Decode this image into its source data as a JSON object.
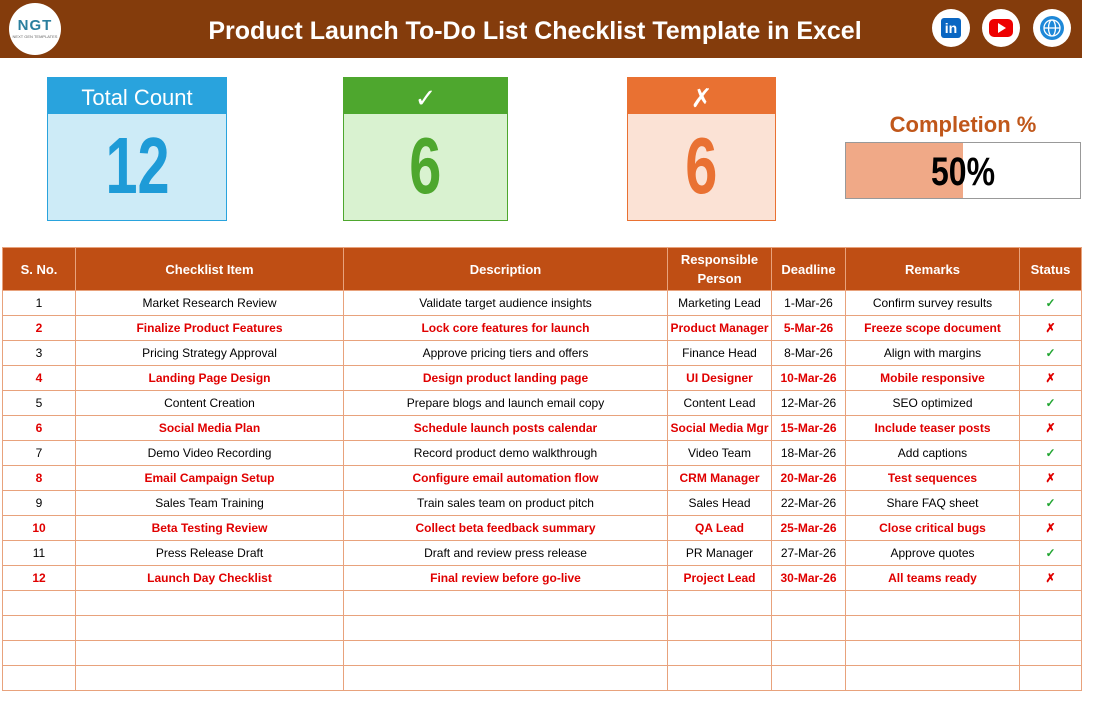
{
  "header": {
    "logo": "NGT",
    "logo_tagline": "NEXT GEN TEMPLATES",
    "title": "Product Launch To-Do List Checklist Template in Excel",
    "linkedin_icon": "in"
  },
  "cards": [
    {
      "label": "Total Count",
      "value": 12
    },
    {
      "label": "✓",
      "value": 6
    },
    {
      "label": "✗",
      "value": 6
    }
  ],
  "completion": {
    "label": "Completion %",
    "value": 50,
    "value_label": "50%"
  },
  "table": {
    "columns": [
      "S. No.",
      "Checklist Item",
      "Description",
      "Responsible Person",
      "Deadline",
      "Remarks",
      "Status"
    ],
    "rows": [
      [
        1,
        "Market Research Review",
        "Validate target audience insights",
        "Marketing Lead",
        "1-Mar-26",
        "Confirm survey results",
        "✓"
      ],
      [
        2,
        "Finalize Product Features",
        "Lock core features for launch",
        "Product Manager",
        "5-Mar-26",
        "Freeze scope document",
        "✗"
      ],
      [
        3,
        "Pricing Strategy Approval",
        "Approve pricing tiers and offers",
        "Finance Head",
        "8-Mar-26",
        "Align with margins",
        "✓"
      ],
      [
        4,
        "Landing Page Design",
        "Design product landing page",
        "UI Designer",
        "10-Mar-26",
        "Mobile responsive",
        "✗"
      ],
      [
        5,
        "Content Creation",
        "Prepare blogs and launch email copy",
        "Content Lead",
        "12-Mar-26",
        "SEO optimized",
        "✓"
      ],
      [
        6,
        "Social Media Plan",
        "Schedule launch posts calendar",
        "Social Media Mgr",
        "15-Mar-26",
        "Include teaser posts",
        "✗"
      ],
      [
        7,
        "Demo Video Recording",
        "Record product demo walkthrough",
        "Video Team",
        "18-Mar-26",
        "Add captions",
        "✓"
      ],
      [
        8,
        "Email Campaign Setup",
        "Configure email automation flow",
        "CRM Manager",
        "20-Mar-26",
        "Test sequences",
        "✗"
      ],
      [
        9,
        "Sales Team Training",
        "Train sales team on product pitch",
        "Sales Head",
        "22-Mar-26",
        "Share FAQ sheet",
        "✓"
      ],
      [
        10,
        "Beta Testing Review",
        "Collect beta feedback summary",
        "QA Lead",
        "25-Mar-26",
        "Close critical bugs",
        "✗"
      ],
      [
        11,
        "Press Release Draft",
        "Draft and review press release",
        "PR Manager",
        "27-Mar-26",
        "Approve quotes",
        "✓"
      ],
      [
        12,
        "Launch Day Checklist",
        "Final review before go-live",
        "Project Lead",
        "30-Mar-26",
        "All teams ready",
        "✗"
      ]
    ]
  }
}
